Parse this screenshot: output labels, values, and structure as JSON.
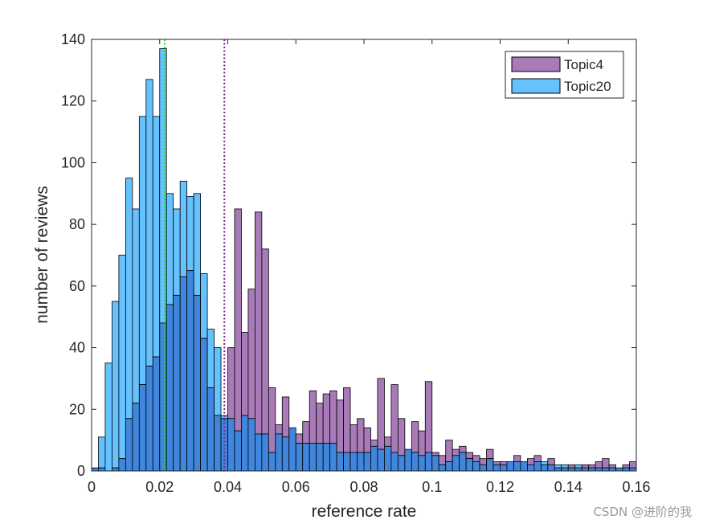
{
  "chart_data": {
    "type": "histogram",
    "title": "",
    "xlabel": "reference rate",
    "ylabel": "number of reviews",
    "xlim": [
      0,
      0.16
    ],
    "ylim": [
      0,
      140
    ],
    "xticks": [
      0,
      0.02,
      0.04,
      0.06,
      0.08,
      0.1,
      0.12,
      0.14,
      0.16
    ],
    "xtick_labels": [
      "0",
      "0.02",
      "0.04",
      "0.06",
      "0.08",
      "0.1",
      "0.12",
      "0.14",
      "0.16"
    ],
    "yticks": [
      0,
      20,
      40,
      60,
      80,
      100,
      120,
      140
    ],
    "ytick_labels": [
      "0",
      "20",
      "40",
      "60",
      "80",
      "100",
      "120",
      "140"
    ],
    "bin_start": 0,
    "bin_width": 0.002,
    "legend_position": "top-right",
    "series": [
      {
        "name": "Topic4",
        "color": "#a87ab8",
        "mean_line": 0.039,
        "mean_line_color": "#7a1f8c",
        "values": [
          1,
          1,
          0,
          1,
          4,
          17,
          22,
          28,
          34,
          37,
          48,
          54,
          57,
          63,
          65,
          57,
          43,
          27,
          18,
          17,
          40,
          85,
          45,
          59,
          84,
          72,
          27,
          15,
          24,
          14,
          12,
          16,
          26,
          22,
          25,
          26,
          23,
          27,
          15,
          17,
          14,
          10,
          30,
          11,
          28,
          17,
          7,
          16,
          13,
          29,
          6,
          5,
          10,
          7,
          8,
          6,
          5,
          4,
          7,
          3,
          3,
          3,
          5,
          3,
          4,
          5,
          2,
          4,
          1,
          1,
          2,
          1,
          2,
          2,
          3,
          4,
          2,
          1,
          2,
          3
        ]
      },
      {
        "name": "Topic20",
        "color": "#66c2ff",
        "mean_line": 0.0215,
        "mean_line_color": "#1fdd2a",
        "values": [
          1,
          11,
          35,
          55,
          70,
          95,
          85,
          115,
          127,
          115,
          137,
          90,
          85,
          94,
          89,
          90,
          64,
          46,
          40,
          18,
          17,
          13,
          18,
          17,
          12,
          12,
          6,
          12,
          11,
          14,
          9,
          9,
          9,
          9,
          9,
          9,
          6,
          6,
          6,
          6,
          6,
          8,
          7,
          8,
          6,
          5,
          7,
          6,
          5,
          6,
          5,
          2,
          3,
          5,
          6,
          4,
          3,
          2,
          4,
          2,
          2,
          3,
          3,
          3,
          2,
          3,
          3,
          2,
          2,
          2,
          1,
          2,
          1,
          1,
          1,
          1,
          1,
          1,
          1,
          1
        ]
      }
    ],
    "overlap_color": "#3f86dc"
  },
  "watermark": "CSDN @进阶的我"
}
